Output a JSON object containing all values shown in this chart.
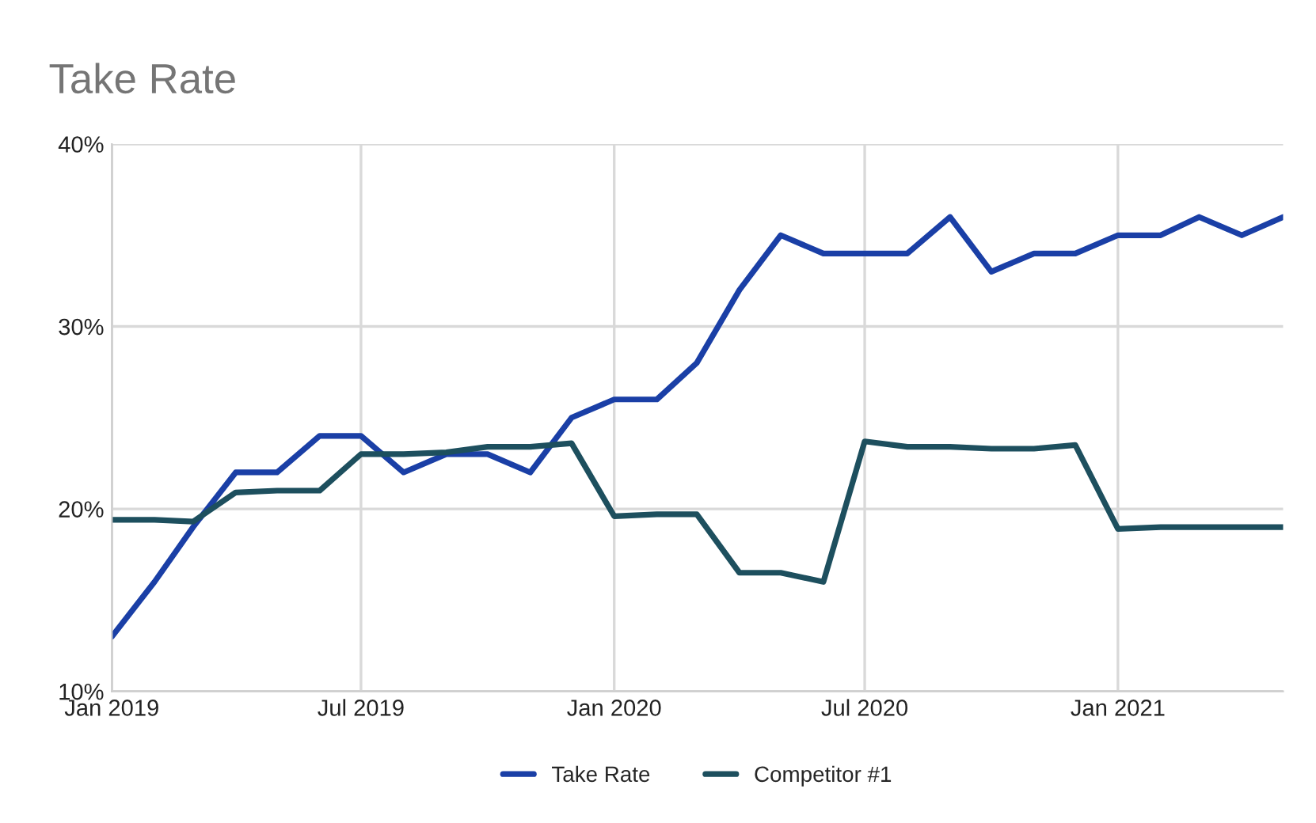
{
  "chart_data": {
    "type": "line",
    "title": "Take Rate",
    "x": [
      "2019-01",
      "2019-02",
      "2019-03",
      "2019-04",
      "2019-05",
      "2019-06",
      "2019-07",
      "2019-08",
      "2019-09",
      "2019-10",
      "2019-11",
      "2019-12",
      "2020-01",
      "2020-02",
      "2020-03",
      "2020-04",
      "2020-05",
      "2020-06",
      "2020-07",
      "2020-08",
      "2020-09",
      "2020-10",
      "2020-11",
      "2020-12",
      "2021-01",
      "2021-02",
      "2021-03",
      "2021-04",
      "2021-05"
    ],
    "series": [
      {
        "name": "Take Rate",
        "color": "#1a3fa6",
        "values": [
          13,
          16,
          19,
          22,
          22,
          24,
          24,
          22,
          23,
          23,
          22,
          25,
          26,
          26,
          28,
          32,
          35,
          34,
          34,
          34,
          36,
          33,
          34,
          34,
          35,
          35,
          36,
          35,
          36
        ]
      },
      {
        "name": "Competitor #1",
        "color": "#1d4f5e",
        "values": [
          19.4,
          19.4,
          19.3,
          20.9,
          21,
          21,
          23,
          23,
          23.1,
          23.4,
          23.4,
          23.6,
          19.6,
          19.7,
          19.7,
          16.5,
          16.5,
          16,
          23.7,
          23.4,
          23.4,
          23.3,
          23.3,
          23.5,
          18.9,
          19,
          19,
          19,
          19
        ]
      }
    ],
    "xlim": [
      "2019-01",
      "2021-05"
    ],
    "xticks": [
      {
        "value": "2019-01",
        "label": "Jan 2019"
      },
      {
        "value": "2019-07",
        "label": "Jul 2019"
      },
      {
        "value": "2020-01",
        "label": "Jan 2020"
      },
      {
        "value": "2020-07",
        "label": "Jul 2020"
      },
      {
        "value": "2021-01",
        "label": "Jan 2021"
      }
    ],
    "ylim": [
      10,
      40
    ],
    "yticks": [
      {
        "value": 10,
        "label": "10%"
      },
      {
        "value": 20,
        "label": "20%"
      },
      {
        "value": 30,
        "label": "30%"
      },
      {
        "value": 40,
        "label": "40%"
      }
    ],
    "grid": true,
    "legend": "bottom",
    "marker": "none",
    "line_style": "solid"
  }
}
